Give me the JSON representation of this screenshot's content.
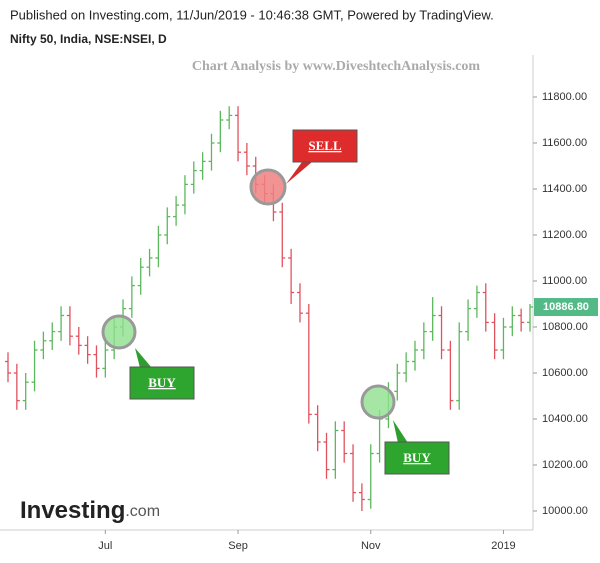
{
  "header": {
    "line1": "Published on Investing.com, 11/Jun/2019 - 10:46:38 GMT, Powered by TradingView.",
    "line2": "Nifty 50, India, NSE:NSEI, D"
  },
  "watermark": "Chart Analysis by www.DiveshtechAnalysis.com",
  "logo": {
    "main": "Investing",
    "suffix": ".com"
  },
  "annotations": [
    "BUY",
    "SELL",
    "BUY"
  ],
  "chart_data": {
    "type": "ohlc",
    "categories": [
      null,
      null,
      null,
      null,
      null,
      null,
      null,
      null,
      null,
      null,
      null,
      "Jul",
      null,
      null,
      null,
      null,
      null,
      null,
      null,
      null,
      null,
      null,
      null,
      null,
      null,
      null,
      "Sep",
      null,
      null,
      null,
      null,
      null,
      null,
      null,
      null,
      null,
      null,
      null,
      null,
      null,
      null,
      "Nov",
      null,
      null,
      null,
      null,
      null,
      null,
      null,
      null,
      null,
      null,
      null,
      null,
      null,
      null,
      "2019",
      null,
      null,
      null
    ],
    "open": [
      10650,
      10600,
      10480,
      10560,
      10700,
      10740,
      10780,
      10850,
      10760,
      10720,
      10680,
      10620,
      10700,
      10800,
      10880,
      10980,
      11060,
      11100,
      11200,
      11280,
      11330,
      11420,
      11480,
      11520,
      11600,
      11700,
      11720,
      11560,
      11500,
      11420,
      11380,
      11300,
      11100,
      10950,
      10860,
      10420,
      10300,
      10180,
      10350,
      10250,
      10080,
      10050,
      10250,
      10400,
      10520,
      10600,
      10650,
      10700,
      10780,
      10850,
      10700,
      10480,
      10780,
      10880,
      10950,
      10820,
      10700,
      10800,
      10850,
      10820
    ],
    "high": [
      10690,
      10640,
      10600,
      10740,
      10780,
      10820,
      10890,
      10890,
      10800,
      10760,
      10720,
      10740,
      10840,
      10920,
      11020,
      11100,
      11140,
      11240,
      11320,
      11370,
      11460,
      11520,
      11560,
      11640,
      11740,
      11760,
      11760,
      11600,
      11540,
      11460,
      11420,
      11340,
      11140,
      10990,
      10900,
      10460,
      10340,
      10390,
      10390,
      10290,
      10120,
      10290,
      10440,
      10560,
      10640,
      10690,
      10740,
      10820,
      10930,
      10890,
      10740,
      10820,
      10920,
      10980,
      10990,
      10860,
      10840,
      10890,
      10880,
      10900
    ],
    "low": [
      10560,
      10440,
      10440,
      10520,
      10660,
      10700,
      10740,
      10720,
      10680,
      10640,
      10580,
      10580,
      10660,
      10760,
      10840,
      10940,
      11020,
      11060,
      11160,
      11240,
      11290,
      11380,
      11440,
      11480,
      11560,
      11660,
      11520,
      11460,
      11380,
      11340,
      11260,
      11060,
      10900,
      10820,
      10380,
      10260,
      10140,
      10140,
      10210,
      10040,
      10000,
      10010,
      10210,
      10360,
      10480,
      10560,
      10610,
      10660,
      10740,
      10660,
      10440,
      10440,
      10740,
      10840,
      10780,
      10660,
      10660,
      10760,
      10780,
      10780
    ],
    "close": [
      10600,
      10480,
      10560,
      10700,
      10740,
      10780,
      10850,
      10760,
      10720,
      10680,
      10620,
      10700,
      10800,
      10880,
      10980,
      11060,
      11100,
      11200,
      11280,
      11330,
      11420,
      11480,
      11520,
      11600,
      11700,
      11720,
      11560,
      11500,
      11420,
      11380,
      11300,
      11100,
      10950,
      10860,
      10420,
      10300,
      10180,
      10350,
      10250,
      10080,
      10050,
      10250,
      10400,
      10520,
      10600,
      10650,
      10700,
      10780,
      10850,
      10700,
      10480,
      10780,
      10880,
      10950,
      10820,
      10700,
      10800,
      10850,
      10820,
      10886.8
    ],
    "up_color": "#5cb85c",
    "down_color": "#e0525e",
    "ylim": [
      9920,
      11960
    ],
    "yticks": [
      {
        "value": 10000,
        "label": "10000.00"
      },
      {
        "value": 10200,
        "label": "10200.00"
      },
      {
        "value": 10400,
        "label": "10400.00"
      },
      {
        "value": 10600,
        "label": "10600.00"
      },
      {
        "value": 10800,
        "label": "10800.00"
      },
      {
        "value": 11000,
        "label": "11000.00"
      },
      {
        "value": 11200,
        "label": "11200.00"
      },
      {
        "value": 11400,
        "label": "11400.00"
      },
      {
        "value": 11600,
        "label": "11600.00"
      },
      {
        "value": 11800,
        "label": "11800.00"
      }
    ],
    "last_price": {
      "value": 10886.8,
      "label": "10886.80"
    },
    "last_color": "#53b987"
  }
}
